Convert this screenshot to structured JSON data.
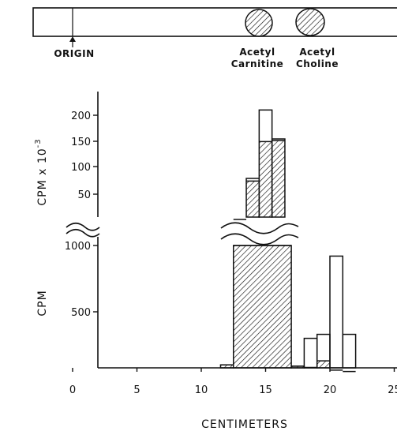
{
  "chromatogram_strip": {
    "origin_label": "ORIGIN",
    "spots": [
      {
        "name_line1": "Acetyl",
        "name_line2": "Carnitine",
        "position_cm": 15.3
      },
      {
        "name_line1": "Acetyl",
        "name_line2": "Choline",
        "position_cm": 19.7
      }
    ]
  },
  "chart_data": {
    "type": "bar",
    "xlabel": "CENTIMETERS",
    "x_ticks": [
      "0",
      "5",
      "10",
      "15",
      "20",
      "25"
    ],
    "xlim": [
      -1,
      27
    ],
    "panels": [
      {
        "name": "upper",
        "ylabel": "CPM x 10",
        "ylabel_exponent": "-3",
        "y_ticks": [
          "50",
          "100",
          "150",
          "200"
        ],
        "ylim": [
          0,
          230
        ],
        "series": [
          {
            "style": "open",
            "bins": [
              {
                "x0": 12.5,
                "x1": 13.5,
                "y": 2
              },
              {
                "x0": 13.5,
                "x1": 14.5,
                "y": 80
              },
              {
                "x0": 14.5,
                "x1": 15.5,
                "y": 210
              },
              {
                "x0": 15.5,
                "x1": 16.5,
                "y": 155
              }
            ]
          },
          {
            "style": "hatched",
            "bins": [
              {
                "x0": 12.5,
                "x1": 13.5,
                "y": 2
              },
              {
                "x0": 13.5,
                "x1": 14.5,
                "y": 75
              },
              {
                "x0": 14.5,
                "x1": 15.5,
                "y": 150
              },
              {
                "x0": 15.5,
                "x1": 16.5,
                "y": 152
              }
            ]
          }
        ]
      },
      {
        "name": "lower",
        "ylabel": "CPM",
        "y_ticks": [
          "500",
          "1000"
        ],
        "ylim": [
          0,
          1150
        ],
        "series": [
          {
            "style": "open",
            "bins": [
              {
                "x0": 11.5,
                "x1": 12.5,
                "y": 100
              },
              {
                "x0": 12.5,
                "x1": 17,
                "y": 1000
              },
              {
                "x0": 17,
                "x1": 18,
                "y": 90
              },
              {
                "x0": 18,
                "x1": 19,
                "y": 300
              },
              {
                "x0": 19,
                "x1": 20,
                "y": 330
              },
              {
                "x0": 20,
                "x1": 21,
                "y": 920
              },
              {
                "x0": 21,
                "x1": 22,
                "y": 330
              }
            ]
          },
          {
            "style": "hatched",
            "bins": [
              {
                "x0": 11.5,
                "x1": 12.5,
                "y": 100
              },
              {
                "x0": 12.5,
                "x1": 17,
                "y": 1000
              },
              {
                "x0": 17,
                "x1": 18,
                "y": 90
              },
              {
                "x0": 18,
                "x1": 19,
                "y": 80
              },
              {
                "x0": 19,
                "x1": 20,
                "y": 130
              },
              {
                "x0": 20,
                "x1": 21,
                "y": 60
              },
              {
                "x0": 21,
                "x1": 22,
                "y": 50
              }
            ]
          }
        ]
      }
    ]
  }
}
